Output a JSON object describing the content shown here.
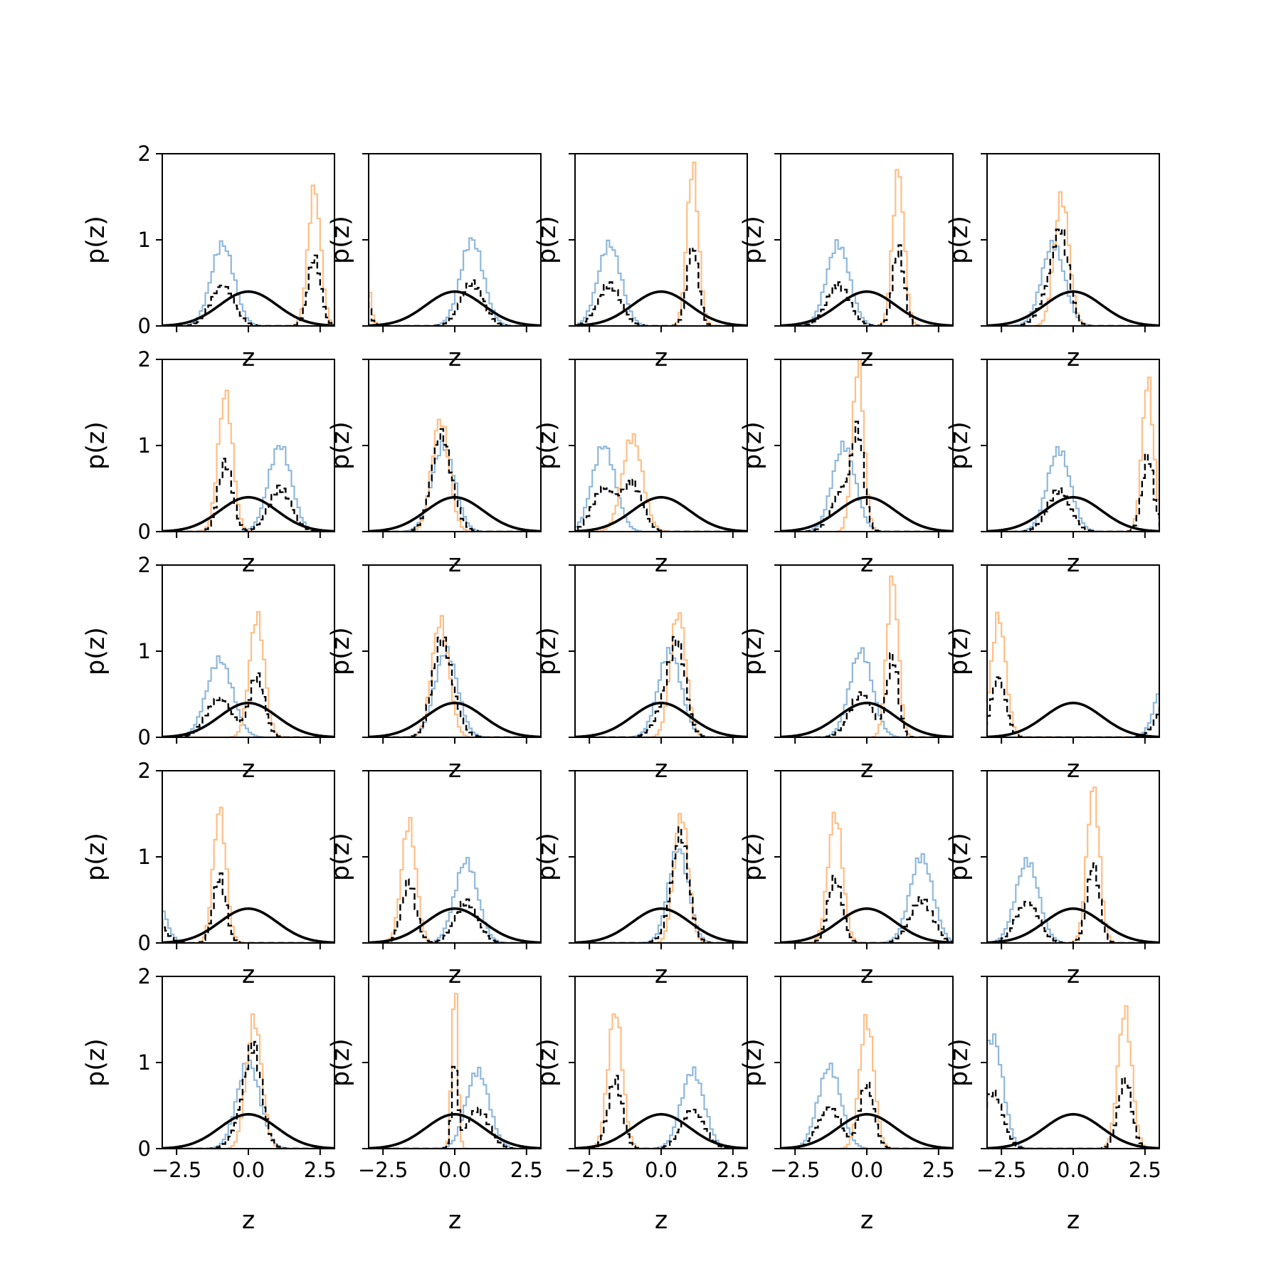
{
  "figure": {
    "grid": [
      5,
      5
    ],
    "shared_axis": {
      "xlabel": "z",
      "ylabel": "p(z)",
      "xlim": [
        -3,
        3
      ],
      "ylim": [
        0,
        2
      ],
      "xticks": [
        -2.5,
        0.0,
        2.5
      ],
      "xtick_labels": [
        "−2.5",
        "0.0",
        "2.5"
      ],
      "yticks": [
        0,
        1,
        2
      ],
      "ytick_labels": [
        "0",
        "1",
        "2"
      ]
    },
    "colors": {
      "component_a": "#8fb8da",
      "component_b": "#ffbe86",
      "mixture": "#000000",
      "prior": "#000000"
    }
  },
  "chart_data": [
    {
      "type": "line",
      "panel": [
        1,
        1
      ],
      "prior": {
        "mu": 0,
        "sigma": 1
      },
      "component_a": {
        "mu": -0.9,
        "sigma": 0.4,
        "peak": 0.95
      },
      "component_b": {
        "mu": 2.3,
        "sigma": 0.22,
        "peak": 1.6
      },
      "mixture_weight_a": 0.5
    },
    {
      "type": "line",
      "panel": [
        1,
        2
      ],
      "prior": {
        "mu": 0,
        "sigma": 1
      },
      "component_a": {
        "mu": 0.6,
        "sigma": 0.4,
        "peak": 1.0
      },
      "component_b": {
        "mu": -3.3,
        "sigma": 0.2,
        "peak": 1.7
      },
      "mixture_weight_a": 0.5
    },
    {
      "type": "line",
      "panel": [
        1,
        3
      ],
      "prior": {
        "mu": 0,
        "sigma": 1
      },
      "component_a": {
        "mu": -1.8,
        "sigma": 0.4,
        "peak": 0.95
      },
      "component_b": {
        "mu": 1.1,
        "sigma": 0.2,
        "peak": 1.85
      },
      "mixture_weight_a": 0.5
    },
    {
      "type": "line",
      "panel": [
        1,
        4
      ],
      "prior": {
        "mu": 0,
        "sigma": 1
      },
      "component_a": {
        "mu": -1.0,
        "sigma": 0.4,
        "peak": 0.95
      },
      "component_b": {
        "mu": 1.1,
        "sigma": 0.2,
        "peak": 1.8
      },
      "mixture_weight_a": 0.5
    },
    {
      "type": "line",
      "panel": [
        1,
        5
      ],
      "prior": {
        "mu": 0,
        "sigma": 1
      },
      "component_a": {
        "mu": -0.7,
        "sigma": 0.4,
        "peak": 0.95
      },
      "component_b": {
        "mu": -0.4,
        "sigma": 0.26,
        "peak": 1.5
      },
      "mixture_weight_a": 0.5
    },
    {
      "type": "line",
      "panel": [
        2,
        1
      ],
      "prior": {
        "mu": 0,
        "sigma": 1
      },
      "component_a": {
        "mu": 1.1,
        "sigma": 0.4,
        "peak": 1.0
      },
      "component_b": {
        "mu": -0.8,
        "sigma": 0.25,
        "peak": 1.6
      },
      "mixture_weight_a": 0.5
    },
    {
      "type": "line",
      "panel": [
        2,
        2
      ],
      "prior": {
        "mu": 0,
        "sigma": 1
      },
      "component_a": {
        "mu": -0.4,
        "sigma": 0.4,
        "peak": 1.0
      },
      "component_b": {
        "mu": -0.5,
        "sigma": 0.3,
        "peak": 1.3
      },
      "mixture_weight_a": 0.5
    },
    {
      "type": "line",
      "panel": [
        2,
        3
      ],
      "prior": {
        "mu": 0,
        "sigma": 1
      },
      "component_a": {
        "mu": -2.0,
        "sigma": 0.4,
        "peak": 1.0
      },
      "component_b": {
        "mu": -1.0,
        "sigma": 0.35,
        "peak": 1.1
      },
      "mixture_weight_a": 0.5
    },
    {
      "type": "line",
      "panel": [
        2,
        4
      ],
      "prior": {
        "mu": 0,
        "sigma": 1
      },
      "component_a": {
        "mu": -0.8,
        "sigma": 0.4,
        "peak": 1.0
      },
      "component_b": {
        "mu": -0.3,
        "sigma": 0.2,
        "peak": 1.95
      },
      "mixture_weight_a": 0.5
    },
    {
      "type": "line",
      "panel": [
        2,
        5
      ],
      "prior": {
        "mu": 0,
        "sigma": 1
      },
      "component_a": {
        "mu": -0.5,
        "sigma": 0.4,
        "peak": 0.95
      },
      "component_b": {
        "mu": 2.6,
        "sigma": 0.2,
        "peak": 1.75
      },
      "mixture_weight_a": 0.5
    },
    {
      "type": "line",
      "panel": [
        3,
        1
      ],
      "prior": {
        "mu": 0,
        "sigma": 1
      },
      "component_a": {
        "mu": -1.0,
        "sigma": 0.45,
        "peak": 0.9
      },
      "component_b": {
        "mu": 0.3,
        "sigma": 0.26,
        "peak": 1.4
      },
      "mixture_weight_a": 0.5
    },
    {
      "type": "line",
      "panel": [
        3,
        2
      ],
      "prior": {
        "mu": 0,
        "sigma": 1
      },
      "component_a": {
        "mu": -0.3,
        "sigma": 0.4,
        "peak": 1.0
      },
      "component_b": {
        "mu": -0.5,
        "sigma": 0.3,
        "peak": 1.35
      },
      "mixture_weight_a": 0.5
    },
    {
      "type": "line",
      "panel": [
        3,
        3
      ],
      "prior": {
        "mu": 0,
        "sigma": 1
      },
      "component_a": {
        "mu": 0.3,
        "sigma": 0.4,
        "peak": 1.0
      },
      "component_b": {
        "mu": 0.6,
        "sigma": 0.27,
        "peak": 1.45
      },
      "mixture_weight_a": 0.5
    },
    {
      "type": "line",
      "panel": [
        3,
        4
      ],
      "prior": {
        "mu": 0,
        "sigma": 1
      },
      "component_a": {
        "mu": -0.2,
        "sigma": 0.4,
        "peak": 1.0
      },
      "component_b": {
        "mu": 0.9,
        "sigma": 0.2,
        "peak": 1.85
      },
      "mixture_weight_a": 0.5
    },
    {
      "type": "line",
      "panel": [
        3,
        5
      ],
      "prior": {
        "mu": 0,
        "sigma": 1
      },
      "component_a": {
        "mu": 3.4,
        "sigma": 0.4,
        "peak": 1.0
      },
      "component_b": {
        "mu": -2.6,
        "sigma": 0.25,
        "peak": 1.4
      },
      "mixture_weight_a": 0.5
    },
    {
      "type": "line",
      "panel": [
        4,
        1
      ],
      "prior": {
        "mu": 0,
        "sigma": 1
      },
      "component_a": {
        "mu": -3.5,
        "sigma": 0.4,
        "peak": 1.0
      },
      "component_b": {
        "mu": -1.0,
        "sigma": 0.22,
        "peak": 1.55
      },
      "mixture_weight_a": 0.5
    },
    {
      "type": "line",
      "panel": [
        4,
        2
      ],
      "prior": {
        "mu": 0,
        "sigma": 1
      },
      "component_a": {
        "mu": 0.4,
        "sigma": 0.4,
        "peak": 0.95
      },
      "component_b": {
        "mu": -1.6,
        "sigma": 0.25,
        "peak": 1.4
      },
      "mixture_weight_a": 0.5
    },
    {
      "type": "line",
      "panel": [
        4,
        3
      ],
      "prior": {
        "mu": 0,
        "sigma": 1
      },
      "component_a": {
        "mu": 0.6,
        "sigma": 0.35,
        "peak": 1.1
      },
      "component_b": {
        "mu": 0.7,
        "sigma": 0.25,
        "peak": 1.5
      },
      "mixture_weight_a": 0.5
    },
    {
      "type": "line",
      "panel": [
        4,
        4
      ],
      "prior": {
        "mu": 0,
        "sigma": 1
      },
      "component_a": {
        "mu": 1.9,
        "sigma": 0.4,
        "peak": 1.0
      },
      "component_b": {
        "mu": -1.1,
        "sigma": 0.25,
        "peak": 1.5
      },
      "mixture_weight_a": 0.5
    },
    {
      "type": "line",
      "panel": [
        4,
        5
      ],
      "prior": {
        "mu": 0,
        "sigma": 1
      },
      "component_a": {
        "mu": -1.6,
        "sigma": 0.4,
        "peak": 0.95
      },
      "component_b": {
        "mu": 0.7,
        "sigma": 0.22,
        "peak": 1.8
      },
      "mixture_weight_a": 0.5
    },
    {
      "type": "line",
      "panel": [
        5,
        1
      ],
      "prior": {
        "mu": 0,
        "sigma": 1
      },
      "component_a": {
        "mu": 0.0,
        "sigma": 0.4,
        "peak": 1.0
      },
      "component_b": {
        "mu": 0.2,
        "sigma": 0.27,
        "peak": 1.5
      },
      "mixture_weight_a": 0.5
    },
    {
      "type": "line",
      "panel": [
        5,
        2
      ],
      "prior": {
        "mu": 0,
        "sigma": 1
      },
      "component_a": {
        "mu": 0.8,
        "sigma": 0.4,
        "peak": 0.9
      },
      "component_b": {
        "mu": 0.0,
        "sigma": 0.1,
        "peak": 1.95
      },
      "mixture_weight_a": 0.5
    },
    {
      "type": "line",
      "panel": [
        5,
        3
      ],
      "prior": {
        "mu": 0,
        "sigma": 1
      },
      "component_a": {
        "mu": 1.1,
        "sigma": 0.4,
        "peak": 0.9
      },
      "component_b": {
        "mu": -1.6,
        "sigma": 0.25,
        "peak": 1.6
      },
      "mixture_weight_a": 0.5
    },
    {
      "type": "line",
      "panel": [
        5,
        4
      ],
      "prior": {
        "mu": 0,
        "sigma": 1
      },
      "component_a": {
        "mu": -1.3,
        "sigma": 0.4,
        "peak": 0.95
      },
      "component_b": {
        "mu": 0.0,
        "sigma": 0.25,
        "peak": 1.5
      },
      "mixture_weight_a": 0.5
    },
    {
      "type": "line",
      "panel": [
        5,
        5
      ],
      "prior": {
        "mu": 0,
        "sigma": 1
      },
      "component_a": {
        "mu": -2.8,
        "sigma": 0.35,
        "peak": 1.3
      },
      "component_b": {
        "mu": 1.8,
        "sigma": 0.24,
        "peak": 1.6
      },
      "mixture_weight_a": 0.5
    }
  ]
}
